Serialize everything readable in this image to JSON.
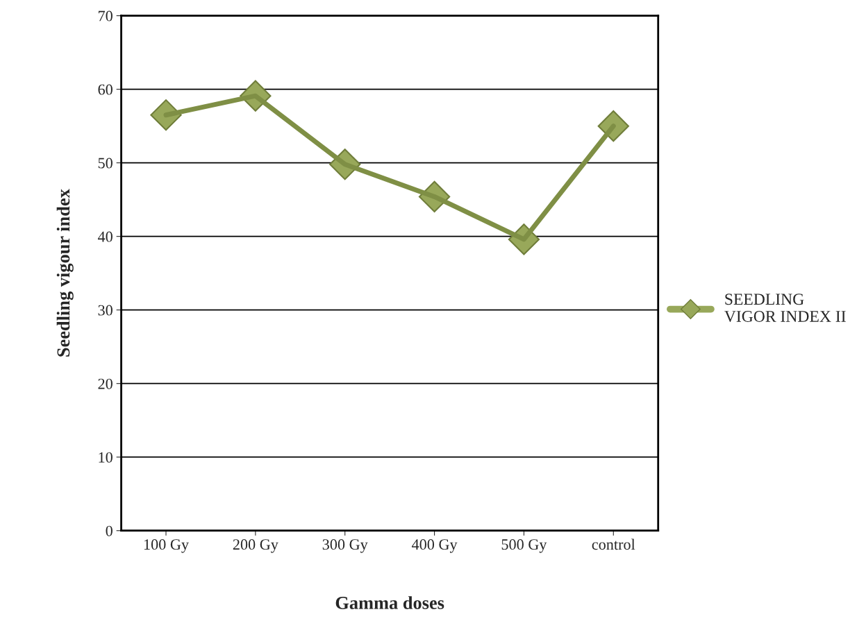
{
  "chart_data": {
    "type": "line",
    "xlabel": "Gamma doses",
    "ylabel": "Seedling vigour index",
    "categories": [
      "100 Gy",
      "200 Gy",
      "300 Gy",
      "400 Gy",
      "500 Gy",
      "control"
    ],
    "series": [
      {
        "name": "SEEDLING VIGOR INDEX II",
        "color": "#98a85a",
        "values": [
          56.5,
          59.1,
          49.8,
          45.4,
          39.6,
          55.0
        ]
      }
    ],
    "ylim": [
      0,
      70
    ],
    "yticks": [
      0,
      10,
      20,
      30,
      40,
      50,
      60,
      70
    ],
    "grid": "y",
    "legend": "right",
    "marker": "diamond",
    "line_style": "solid"
  }
}
